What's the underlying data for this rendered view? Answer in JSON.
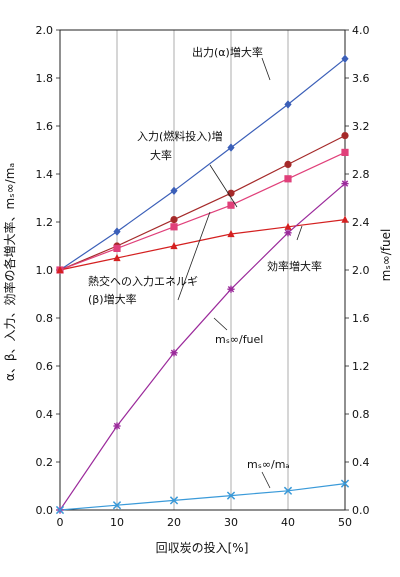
{
  "chart_data": {
    "type": "line",
    "x": [
      0,
      10,
      20,
      30,
      40,
      50
    ],
    "xlabel": "回収炭の投入[%]",
    "ylabel": "α、β、入力、効率の各増大率、mₛ∞/mₐ",
    "y2label": "mₛ∞/fuel",
    "xticks": [
      0,
      10,
      20,
      30,
      40,
      50
    ],
    "yticks": [
      "0.0",
      "0.2",
      "0.4",
      "0.6",
      "0.8",
      "1.0",
      "1.2",
      "1.4",
      "1.6",
      "1.8",
      "2.0"
    ],
    "y2ticks": [
      "0.0",
      "0.4",
      "0.8",
      "1.2",
      "1.6",
      "2.0",
      "2.4",
      "2.8",
      "3.2",
      "3.6",
      "4.0"
    ],
    "xlim": [
      0,
      50
    ],
    "ylim": [
      0,
      2.0
    ],
    "y2lim": [
      0,
      4.0
    ],
    "grid": "vertical",
    "series": [
      {
        "name": "出力(α)増大率",
        "axis": "left",
        "color": "#3b5fb8",
        "marker": "diamond",
        "values": [
          1.0,
          1.16,
          1.33,
          1.51,
          1.69,
          1.88
        ]
      },
      {
        "name": "入力(燃料投入)増大率",
        "axis": "left",
        "color": "#a52a2a",
        "marker": "circle",
        "values": [
          1.0,
          1.1,
          1.21,
          1.32,
          1.44,
          1.56
        ]
      },
      {
        "name": "熱交への入力エネルギ(β)増大率",
        "axis": "left",
        "color": "#e0407a",
        "marker": "square",
        "values": [
          1.0,
          1.09,
          1.18,
          1.27,
          1.38,
          1.49
        ]
      },
      {
        "name": "効率増大率",
        "axis": "left",
        "color": "#d42020",
        "marker": "triangle",
        "values": [
          1.0,
          1.05,
          1.1,
          1.15,
          1.18,
          1.21
        ]
      },
      {
        "name": "mₛ∞/fuel",
        "axis": "right",
        "color": "#9b2a9b",
        "marker": "star",
        "values": [
          0.0,
          0.7,
          1.31,
          1.84,
          2.31,
          2.72
        ]
      },
      {
        "name": "mₛ∞/mₐ",
        "axis": "left",
        "color": "#3a9ad9",
        "marker": "x",
        "values": [
          0.0,
          0.02,
          0.04,
          0.06,
          0.08,
          0.11
        ]
      }
    ],
    "annotations": [
      {
        "label": "出力(α)増大率"
      },
      {
        "label": "入力(燃料投入)増",
        "label2": "大率"
      },
      {
        "label": "熱交への入力エネルギ",
        "label2": "(β)増大率"
      },
      {
        "label": "効率増大率"
      },
      {
        "label": "mₛ∞/fuel"
      },
      {
        "label": "mₛ∞/mₐ"
      }
    ]
  }
}
